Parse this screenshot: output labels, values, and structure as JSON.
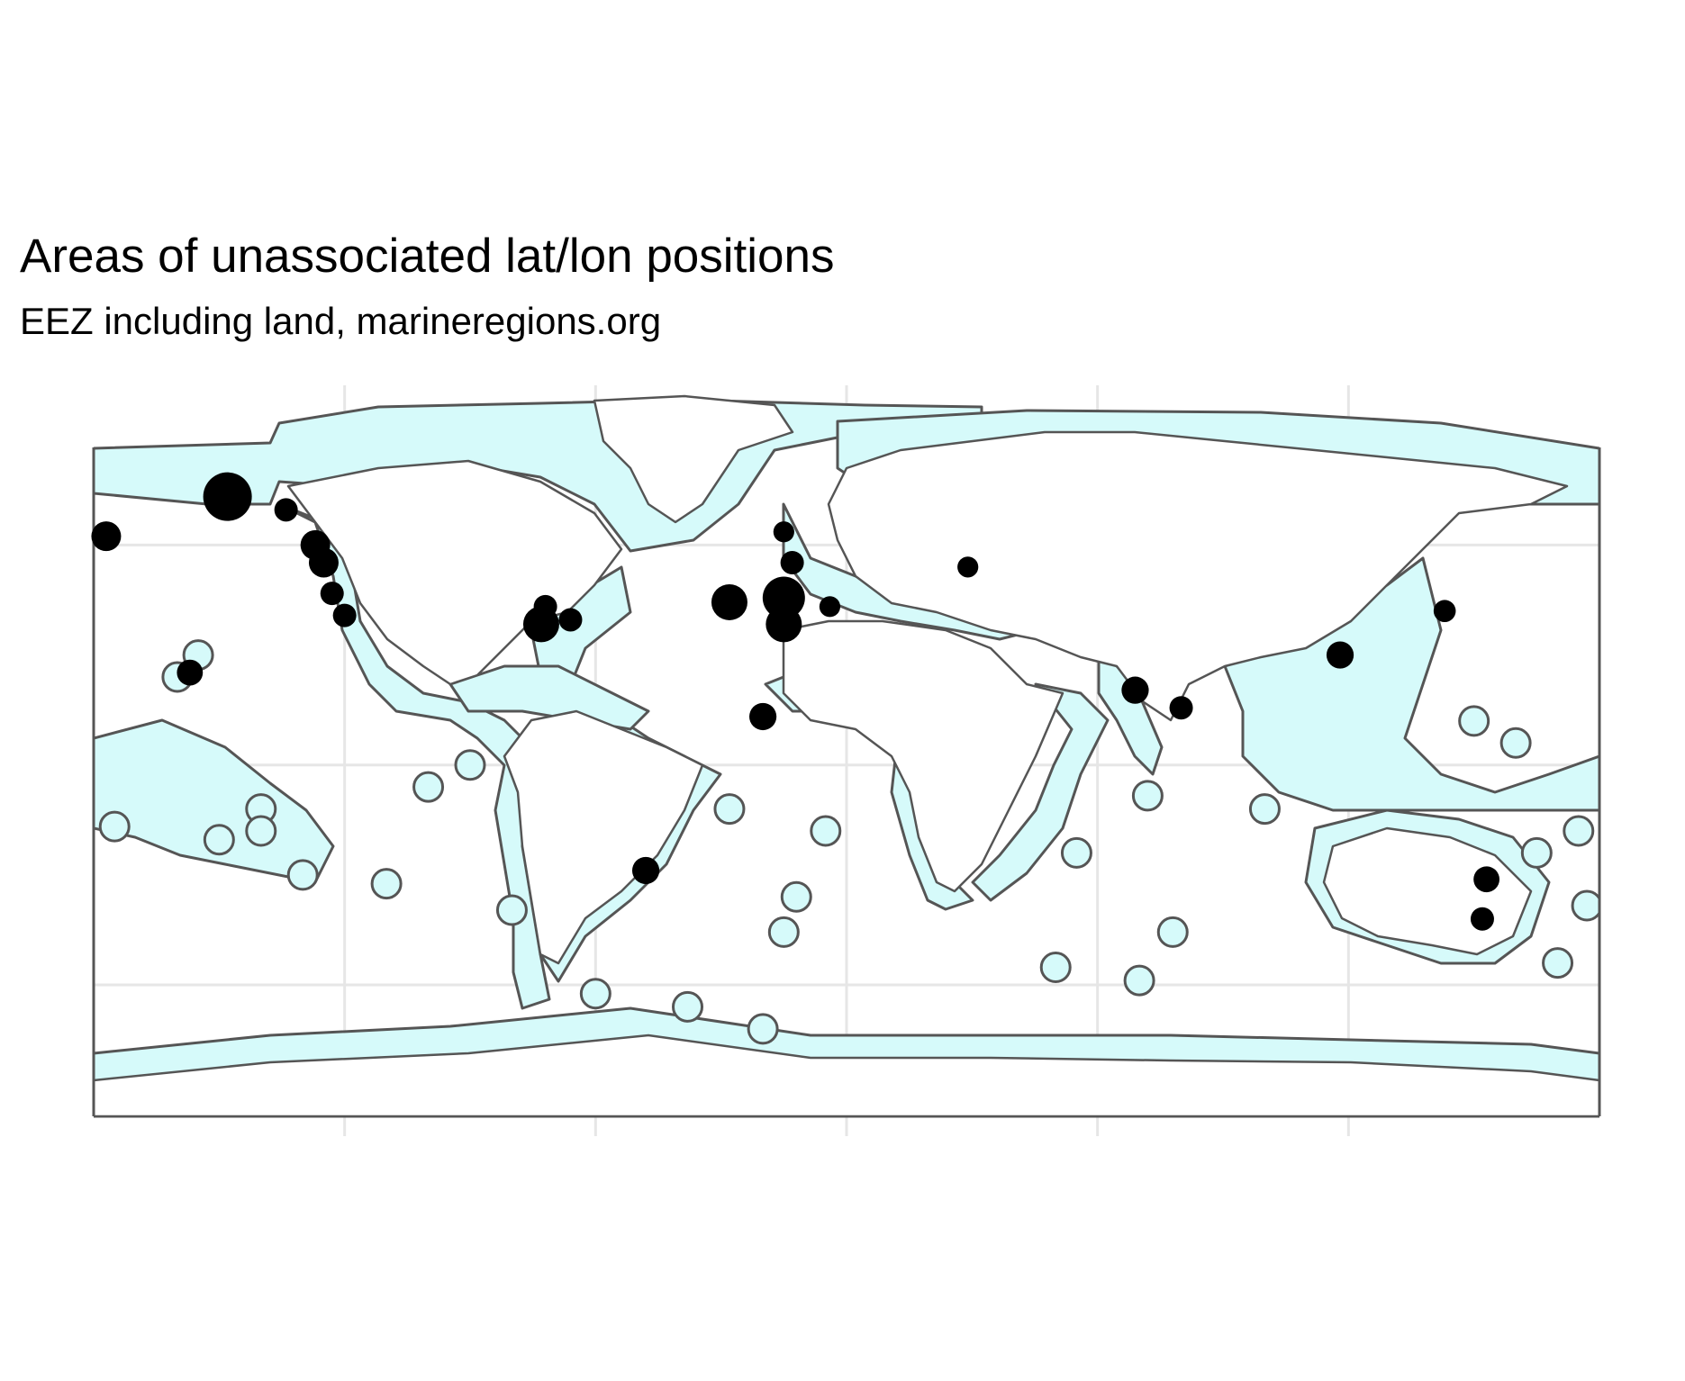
{
  "title": "Areas of unassociated lat/lon positions",
  "subtitle": "EEZ including land, marineregions.org",
  "map": {
    "projection": "equirectangular",
    "lon_range": [
      -180,
      180
    ],
    "lat_range": [
      -85,
      90
    ],
    "graticule_lons": [
      -120,
      -60,
      0,
      60,
      120
    ],
    "graticule_lats": [
      -50,
      0,
      50
    ],
    "grid": true,
    "colors": {
      "eez_fill": "#d6fafa",
      "outline": "#555555",
      "grid": "#e6e6e6",
      "points": "#000000",
      "background": "#ffffff"
    }
  },
  "chart_data": {
    "type": "scatter",
    "title": "Areas of unassociated lat/lon positions",
    "subtitle": "EEZ including land, marineregions.org",
    "x_field": "longitude",
    "y_field": "latitude",
    "series": [
      {
        "points": [
          {
            "lon": -148,
            "lat": 61,
            "weight": 3
          },
          {
            "lon": -177,
            "lat": 52,
            "weight": 1.5
          },
          {
            "lon": -134,
            "lat": 58,
            "weight": 1
          },
          {
            "lon": -127,
            "lat": 50,
            "weight": 1.5
          },
          {
            "lon": -125,
            "lat": 46,
            "weight": 1.5
          },
          {
            "lon": -123,
            "lat": 39,
            "weight": 1
          },
          {
            "lon": -120,
            "lat": 34,
            "weight": 1
          },
          {
            "lon": -157,
            "lat": 21,
            "weight": 1.2
          },
          {
            "lon": -73,
            "lat": 32,
            "weight": 2
          },
          {
            "lon": -72,
            "lat": 36,
            "weight": 1
          },
          {
            "lon": -66,
            "lat": 33,
            "weight": 1
          },
          {
            "lon": -28,
            "lat": 37,
            "weight": 2
          },
          {
            "lon": -15,
            "lat": 38,
            "weight": 2.5
          },
          {
            "lon": -15,
            "lat": 32,
            "weight": 2
          },
          {
            "lon": -13,
            "lat": 46,
            "weight": 1
          },
          {
            "lon": -15,
            "lat": 53,
            "weight": 0.8
          },
          {
            "lon": -4,
            "lat": 36,
            "weight": 0.8
          },
          {
            "lon": -20,
            "lat": 11,
            "weight": 1.3
          },
          {
            "lon": 29,
            "lat": 45,
            "weight": 0.8
          },
          {
            "lon": 69,
            "lat": 17,
            "weight": 1.3
          },
          {
            "lon": 80,
            "lat": 13,
            "weight": 1
          },
          {
            "lon": 118,
            "lat": 25,
            "weight": 1.3
          },
          {
            "lon": 143,
            "lat": 35,
            "weight": 0.9
          },
          {
            "lon": -48,
            "lat": -24,
            "weight": 1.3
          },
          {
            "lon": 153,
            "lat": -26,
            "weight": 1.2
          },
          {
            "lon": 152,
            "lat": -35,
            "weight": 1
          }
        ]
      }
    ]
  }
}
